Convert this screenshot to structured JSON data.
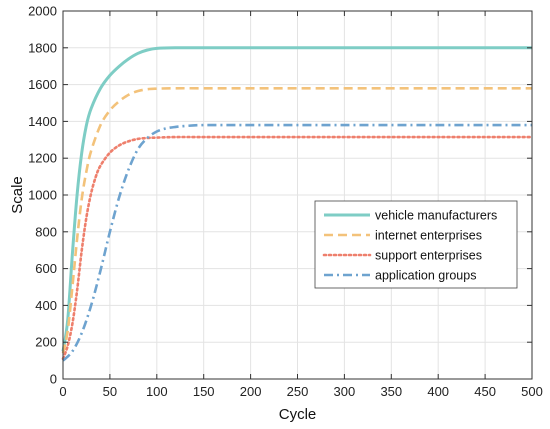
{
  "chart_data": {
    "type": "line",
    "title": "",
    "xlabel": "Cycle",
    "ylabel": "Scale",
    "xlim": [
      0,
      500
    ],
    "ylim": [
      0,
      2000
    ],
    "xticks": [
      0,
      50,
      100,
      150,
      200,
      250,
      300,
      350,
      400,
      450,
      500
    ],
    "yticks": [
      0,
      200,
      400,
      600,
      800,
      1000,
      1200,
      1400,
      1600,
      1800,
      2000
    ],
    "xtick_labels": [
      "0",
      "50",
      "100",
      "150",
      "200",
      "250",
      "300",
      "350",
      "400",
      "450",
      "500"
    ],
    "ytick_labels": [
      "0",
      "200",
      "400",
      "600",
      "800",
      "1000",
      "1200",
      "1400",
      "1600",
      "1800",
      "2000"
    ],
    "grid": true,
    "legend_position": "center-right",
    "series": [
      {
        "name": "vehicle manufacturers",
        "color": "#7ecdc5",
        "style": "solid",
        "x": [
          0,
          5,
          10,
          15,
          20,
          25,
          30,
          40,
          50,
          60,
          70,
          80,
          90,
          100,
          120,
          150,
          200,
          300,
          400,
          500
        ],
        "y": [
          150,
          320,
          680,
          1000,
          1230,
          1380,
          1470,
          1580,
          1650,
          1700,
          1740,
          1770,
          1788,
          1797,
          1800,
          1800,
          1800,
          1800,
          1800,
          1800
        ]
      },
      {
        "name": "internet enterprises",
        "color": "#f3c27a",
        "style": "dashed",
        "x": [
          0,
          5,
          10,
          15,
          20,
          25,
          30,
          40,
          50,
          60,
          70,
          80,
          90,
          100,
          120,
          150,
          200,
          300,
          400,
          500
        ],
        "y": [
          140,
          260,
          500,
          760,
          980,
          1130,
          1240,
          1380,
          1460,
          1510,
          1545,
          1565,
          1575,
          1578,
          1580,
          1580,
          1580,
          1580,
          1580,
          1580
        ]
      },
      {
        "name": "support enterprises",
        "color": "#ee7f6c",
        "style": "dotted",
        "x": [
          0,
          5,
          10,
          15,
          20,
          25,
          30,
          35,
          40,
          50,
          60,
          70,
          80,
          90,
          100,
          120,
          150,
          200,
          300,
          400,
          500
        ],
        "y": [
          110,
          180,
          300,
          480,
          700,
          880,
          1010,
          1100,
          1160,
          1230,
          1270,
          1292,
          1305,
          1310,
          1312,
          1315,
          1315,
          1315,
          1315,
          1315,
          1315
        ]
      },
      {
        "name": "application groups",
        "color": "#6ea3cf",
        "style": "dashdot",
        "x": [
          0,
          10,
          20,
          30,
          40,
          50,
          60,
          70,
          80,
          90,
          100,
          110,
          120,
          130,
          150,
          200,
          300,
          400,
          500
        ],
        "y": [
          100,
          150,
          250,
          400,
          590,
          800,
          990,
          1140,
          1250,
          1310,
          1345,
          1362,
          1370,
          1375,
          1380,
          1380,
          1380,
          1380,
          1380
        ]
      }
    ]
  }
}
